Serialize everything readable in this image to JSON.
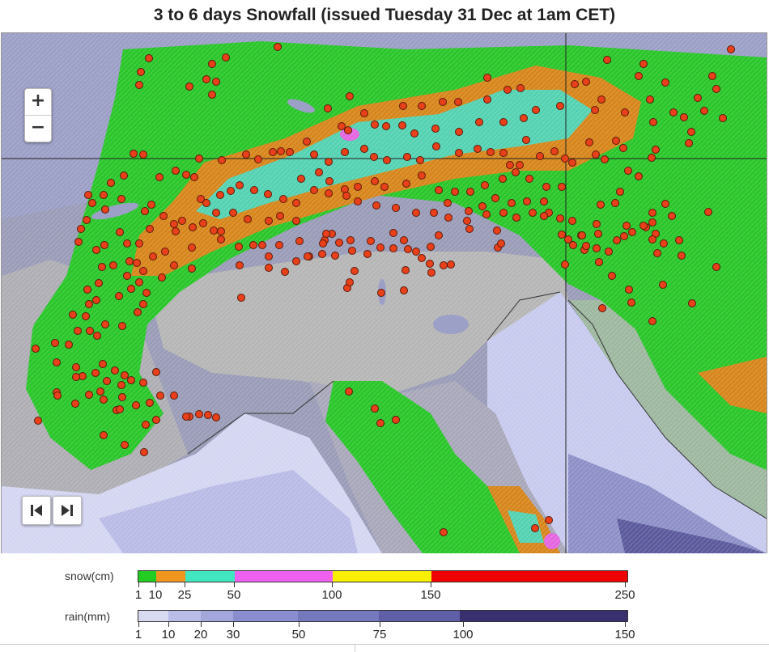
{
  "title": "3 to 6 days Snowfall (issued Tuesday 31 Dec at 1am CET)",
  "zoom": {
    "in_label": "+",
    "out_label": "−"
  },
  "nav": {
    "prev_icon": "skip-back-icon",
    "next_icon": "skip-forward-icon"
  },
  "legend": {
    "snow": {
      "label": "snow(cm)",
      "ticks": [
        "1",
        "10",
        "25",
        "50",
        "100",
        "150",
        "250"
      ],
      "colors": [
        "#22cc22",
        "#f0961e",
        "#40e6c0",
        "#f060f0",
        "#f8f000",
        "#f00000"
      ]
    },
    "rain": {
      "label": "rain(mm)",
      "ticks": [
        "1",
        "10",
        "20",
        "30",
        "50",
        "75",
        "100",
        "150"
      ],
      "colors": [
        "#d8daf2",
        "#b8bce6",
        "#a2a6da",
        "#8a8ece",
        "#7478bc",
        "#5e5fa6",
        "#4a4a8e",
        "#382f6e"
      ]
    }
  },
  "colors": {
    "sea": "#d4d6f2",
    "rain_light": "#b9bbe6",
    "rain_mid": "#a2a6d6",
    "rain_heavy": "#5c5a9c",
    "ground": "#b2b2b2",
    "snow_1": "#2ac62a",
    "snow_10": "#d7861c",
    "snow_25": "#54d2b2",
    "snow_50": "#e466e0",
    "station": "#e8401a"
  }
}
